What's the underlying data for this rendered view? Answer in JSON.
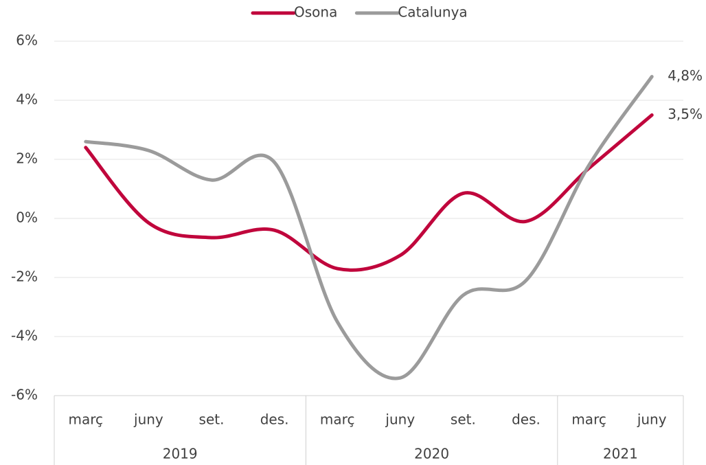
{
  "chart_data": {
    "type": "line",
    "categories": [
      "març",
      "juny",
      "set.",
      "des.",
      "març",
      "juny",
      "set.",
      "des.",
      "març",
      "juny"
    ],
    "x_groups": [
      {
        "label": "2019",
        "span": 4
      },
      {
        "label": "2020",
        "span": 4
      },
      {
        "label": "2021",
        "span": 2
      }
    ],
    "series": [
      {
        "name": "Osona",
        "color": "#c0063c",
        "values": [
          2.4,
          -0.15,
          -0.65,
          -0.4,
          -1.7,
          -1.25,
          0.85,
          -0.1,
          1.7,
          3.5
        ],
        "value_labels": [
          null,
          null,
          null,
          null,
          null,
          null,
          null,
          null,
          null,
          "3,5%"
        ]
      },
      {
        "name": "Catalunya",
        "color": "#9b9b9b",
        "values": [
          2.6,
          2.3,
          1.3,
          1.9,
          -3.5,
          -5.4,
          -2.6,
          -2.1,
          1.8,
          4.8
        ],
        "value_labels": [
          null,
          null,
          null,
          null,
          null,
          null,
          null,
          null,
          null,
          "4,8%"
        ]
      }
    ],
    "ylim": [
      -6,
      6
    ],
    "yticks": [
      {
        "value": -6,
        "label": "-6%"
      },
      {
        "value": -4,
        "label": "-4%"
      },
      {
        "value": -2,
        "label": "-2%"
      },
      {
        "value": 0,
        "label": "0%"
      },
      {
        "value": 2,
        "label": "2%"
      },
      {
        "value": 4,
        "label": "4%"
      },
      {
        "value": 6,
        "label": "6%"
      }
    ],
    "grid": true,
    "legend": "top"
  }
}
